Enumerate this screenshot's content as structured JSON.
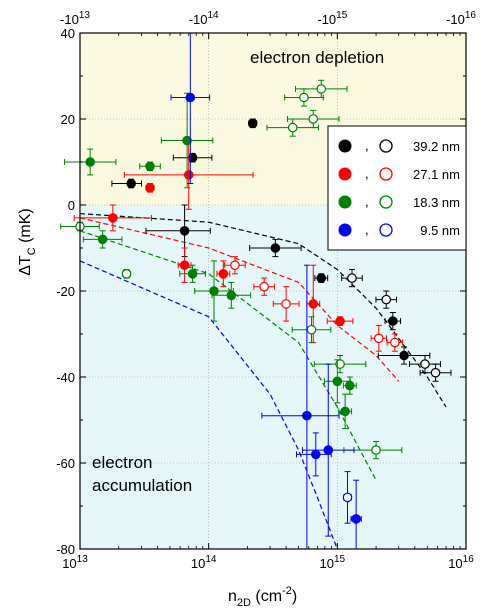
{
  "chart_data": {
    "type": "scatter",
    "x_scale": "log",
    "xlim": [
      10000000000000.0,
      1e+16
    ],
    "ylim": [
      -80,
      40
    ],
    "x_ticks": [
      10000000000000.0,
      100000000000000.0,
      1000000000000000.0,
      1e+16
    ],
    "x_tick_labels": [
      "10",
      "10",
      "10",
      "10"
    ],
    "x_tick_exponents": [
      "13",
      "14",
      "15",
      "16"
    ],
    "y_ticks": [
      -80,
      -60,
      -40,
      -20,
      0,
      20,
      40
    ],
    "y_tick_labels": [
      "-80",
      "-60",
      "-40",
      "-20",
      "0",
      "20",
      "40"
    ],
    "top_tick_labels": [
      "-10",
      "-10",
      "-10",
      "-10"
    ],
    "top_tick_exponents": [
      "13",
      "14",
      "15",
      "16"
    ],
    "xlabel": {
      "main": "n",
      "sub": "2D",
      "unit": " (cm",
      "sup": "-2",
      "close": ")"
    },
    "ylabel": {
      "main": "ΔT",
      "sub": "C",
      "unit": "  (mK)"
    },
    "region_labels": {
      "depletion": "electron depletion",
      "accumulation_line1": "electron",
      "accumulation_line2": "accumulation"
    },
    "grid": true,
    "legend_position": "upper-right",
    "colors": {
      "black": "#000000",
      "red": "#ff0000",
      "green": "#008000",
      "blue": "#0000ff",
      "depletion_bg": "#fbfae1",
      "accumulation_bg": "#e6f7f9"
    },
    "series": [
      {
        "name": "39.2 nm",
        "color": "#000000",
        "filled": [
          {
            "x": 25000000000000.0,
            "y": 5,
            "xerr": [
              0.15,
              0.08
            ],
            "yerr": 1
          },
          {
            "x": 75000000000000.0,
            "y": 11,
            "xerr": [
              0.15,
              0.15
            ],
            "yerr": 1
          },
          {
            "x": 220000000000000.0,
            "y": 19,
            "xerr": [
              0.03,
              0.03
            ],
            "yerr": 1
          },
          {
            "x": 65000000000000.0,
            "y": -6,
            "xerr": [
              0.3,
              0.2
            ],
            "yerr": 6
          },
          {
            "x": 330000000000000.0,
            "y": -10,
            "xerr": [
              0.2,
              0.2
            ],
            "yerr": 2
          },
          {
            "x": 750000000000000.0,
            "y": -17,
            "xerr": [
              0.05,
              0.05
            ],
            "yerr": 1
          },
          {
            "x": 2700000000000000.0,
            "y": -27,
            "xerr": [
              0.06,
              0.06
            ],
            "yerr": 2
          },
          {
            "x": 3300000000000000.0,
            "y": -35,
            "xerr": [
              0.2,
              0.2
            ],
            "yerr": 2
          }
        ],
        "open": [
          {
            "x": 1300000000000000.0,
            "y": -17,
            "xerr": [
              0.08,
              0.08
            ],
            "yerr": 2
          },
          {
            "x": 2400000000000000.0,
            "y": -22,
            "xerr": [
              0.08,
              0.08
            ],
            "yerr": 2
          },
          {
            "x": 4800000000000000.0,
            "y": -37,
            "xerr": [
              0.12,
              0.12
            ],
            "yerr": 2
          },
          {
            "x": 5800000000000000.0,
            "y": -39,
            "xerr": [
              0.12,
              0.12
            ],
            "yerr": 2
          }
        ],
        "fit": [
          [
            10000000000000.0,
            -2
          ],
          [
            100000000000000.0,
            -4
          ],
          [
            500000000000000.0,
            -9
          ],
          [
            1000000000000000.0,
            -15
          ],
          [
            2000000000000000.0,
            -24
          ],
          [
            3000000000000000.0,
            -31
          ],
          [
            5000000000000000.0,
            -40
          ],
          [
            7000000000000000.0,
            -47
          ]
        ]
      },
      {
        "name": "27.1 nm",
        "color": "#ff0000",
        "filled": [
          {
            "x": 35000000000000.0,
            "y": 4,
            "xerr": [
              0.03,
              0.03
            ],
            "yerr": 1
          },
          {
            "x": 70000000000000.0,
            "y": 7,
            "xerr": [
              0.5,
              0.5
            ],
            "yerr": 8
          },
          {
            "x": 18000000000000.0,
            "y": -3,
            "xerr": [
              0.3,
              0.3
            ],
            "yerr": 3
          },
          {
            "x": 65000000000000.0,
            "y": -14,
            "xerr": [
              0.05,
              0.05
            ],
            "yerr": 4
          },
          {
            "x": 130000000000000.0,
            "y": -16,
            "xerr": [
              0.05,
              0.05
            ],
            "yerr": 3
          },
          {
            "x": 650000000000000.0,
            "y": -23,
            "xerr": [
              0.05,
              0.05
            ],
            "yerr": 9
          },
          {
            "x": 1050000000000000.0,
            "y": -27,
            "xerr": [
              0.1,
              0.1
            ],
            "yerr": 1
          }
        ],
        "open": [
          {
            "x": 160000000000000.0,
            "y": -14,
            "xerr": [
              0.08,
              0.08
            ],
            "yerr": 2
          },
          {
            "x": 400000000000000.0,
            "y": -23,
            "xerr": [
              0.1,
              0.1
            ],
            "yerr": 4
          },
          {
            "x": 270000000000000.0,
            "y": -19,
            "xerr": [
              0.08,
              0.08
            ],
            "yerr": 2
          },
          {
            "x": 2100000000000000.0,
            "y": -31,
            "xerr": [
              0.06,
              0.06
            ],
            "yerr": 3
          },
          {
            "x": 2800000000000000.0,
            "y": -32,
            "xerr": [
              0.06,
              0.06
            ],
            "yerr": 2
          }
        ],
        "fit": [
          [
            10000000000000.0,
            -3
          ],
          [
            100000000000000.0,
            -10
          ],
          [
            500000000000000.0,
            -18
          ],
          [
            1000000000000000.0,
            -28
          ],
          [
            2000000000000000.0,
            -35
          ],
          [
            3000000000000000.0,
            -41
          ]
        ]
      },
      {
        "name": "18.3 nm",
        "color": "#008000",
        "filled": [
          {
            "x": 12000000000000.0,
            "y": 10,
            "xerr": [
              0.2,
              0.2
            ],
            "yerr": 3
          },
          {
            "x": 35000000000000.0,
            "y": 9,
            "xerr": [
              0.08,
              0.08
            ],
            "yerr": 1
          },
          {
            "x": 68000000000000.0,
            "y": 15,
            "xerr": [
              0.2,
              0.2
            ],
            "yerr": 11
          },
          {
            "x": 15000000000000.0,
            "y": -8,
            "xerr": [
              0.15,
              0.15
            ],
            "yerr": 2
          },
          {
            "x": 75000000000000.0,
            "y": -16,
            "xerr": [
              0.1,
              0.1
            ],
            "yerr": 2
          },
          {
            "x": 110000000000000.0,
            "y": -20,
            "xerr": [
              0.15,
              0.15
            ],
            "yerr": 7
          },
          {
            "x": 150000000000000.0,
            "y": -21,
            "xerr": [
              0.15,
              0.15
            ],
            "yerr": 3
          },
          {
            "x": 1000000000000000.0,
            "y": -41,
            "xerr": [
              0.1,
              0.1
            ],
            "yerr": 5
          },
          {
            "x": 1250000000000000.0,
            "y": -42,
            "xerr": [
              0.05,
              0.05
            ],
            "yerr": 2
          },
          {
            "x": 1150000000000000.0,
            "y": -48,
            "xerr": [
              0.05,
              0.05
            ],
            "yerr": 4
          }
        ],
        "open": [
          {
            "x": 550000000000000.0,
            "y": 25,
            "xerr": [
              0.15,
              0.15
            ],
            "yerr": 2
          },
          {
            "x": 750000000000000.0,
            "y": 27,
            "xerr": [
              0.2,
              0.2
            ],
            "yerr": 2
          },
          {
            "x": 450000000000000.0,
            "y": 18,
            "xerr": [
              0.2,
              0.2
            ],
            "yerr": 2
          },
          {
            "x": 650000000000000.0,
            "y": 20,
            "xerr": [
              0.2,
              0.2
            ],
            "yerr": 2
          },
          {
            "x": 10000000000000.0,
            "y": -5,
            "xerr": [
              0.15,
              0.15
            ],
            "yerr": 1
          },
          {
            "x": 23000000000000.0,
            "y": -16,
            "xerr": [
              0.03,
              0.03
            ],
            "yerr": 1
          },
          {
            "x": 630000000000000.0,
            "y": -29,
            "xerr": [
              0.15,
              0.15
            ],
            "yerr": 3
          },
          {
            "x": 1050000000000000.0,
            "y": -37,
            "xerr": [
              0.2,
              0.2
            ],
            "yerr": 2
          },
          {
            "x": 2000000000000000.0,
            "y": -57,
            "xerr": [
              0.25,
              0.2
            ],
            "yerr": 2
          }
        ],
        "fit": [
          [
            10000000000000.0,
            -6
          ],
          [
            100000000000000.0,
            -16
          ],
          [
            500000000000000.0,
            -32
          ],
          [
            1000000000000000.0,
            -47
          ],
          [
            1500000000000000.0,
            -57
          ],
          [
            2000000000000000.0,
            -64
          ]
        ]
      },
      {
        "name": "9.5 nm",
        "color": "#0000ff",
        "filled": [
          {
            "x": 72000000000000.0,
            "y": 25,
            "xerr": [
              0.15,
              0.15
            ],
            "yerr": 20
          },
          {
            "x": 580000000000000.0,
            "y": -49,
            "xerr": [
              0.35,
              0.25
            ],
            "yerr": 35
          },
          {
            "x": 680000000000000.0,
            "y": -58,
            "xerr": [
              0.15,
              0.12
            ],
            "yerr": 5
          },
          {
            "x": 850000000000000.0,
            "y": -57,
            "xerr": [
              0.2,
              0.2
            ],
            "yerr": 20
          },
          {
            "x": 1400000000000000.0,
            "y": -73,
            "xerr": [
              0.04,
              0.04
            ],
            "yerr": 9
          }
        ],
        "open": [
          {
            "x": 1200000000000000.0,
            "y": -68,
            "xerr": [
              0.03,
              0.03
            ],
            "yerr": 6
          }
        ],
        "fit": [
          [
            10000000000000.0,
            -13
          ],
          [
            100000000000000.0,
            -26
          ],
          [
            300000000000000.0,
            -44
          ],
          [
            500000000000000.0,
            -57
          ],
          [
            700000000000000.0,
            -68
          ],
          [
            1000000000000000.0,
            -82
          ]
        ]
      }
    ]
  }
}
